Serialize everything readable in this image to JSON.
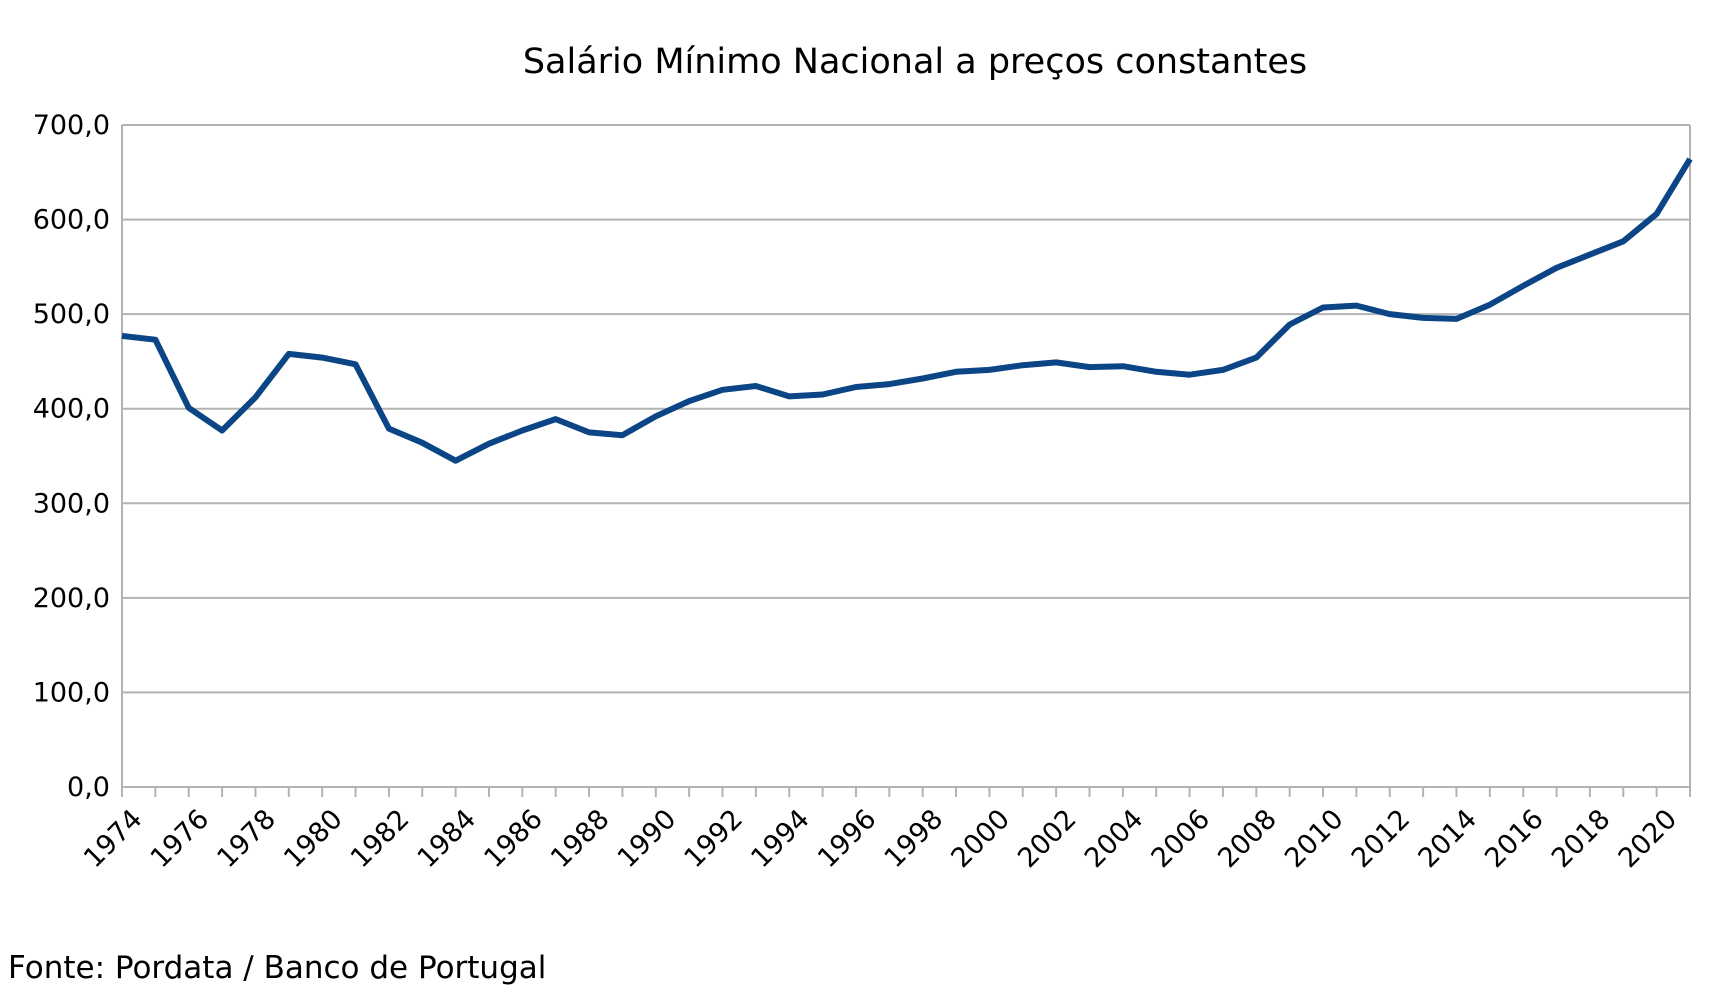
{
  "source_note": "Fonte: Pordata / Banco de Portugal",
  "colors": {
    "line": "#0b4586",
    "grid": "#b3b3b3",
    "axis": "#b3b3b3"
  },
  "chart_data": {
    "type": "line",
    "title": "Salário Mínimo Nacional a preços constantes",
    "xlabel": "",
    "ylabel": "",
    "ylim": [
      0,
      700
    ],
    "y_ticks": [
      "0,0",
      "100,0",
      "200,0",
      "300,0",
      "400,0",
      "500,0",
      "600,0",
      "700,0"
    ],
    "grid": true,
    "legend": "none",
    "x_tick_labels": [
      "1974",
      "1976",
      "1978",
      "1980",
      "1982",
      "1984",
      "1986",
      "1988",
      "1990",
      "1992",
      "1994",
      "1996",
      "1998",
      "2000",
      "2002",
      "2004",
      "2006",
      "2008",
      "2010",
      "2012",
      "2014",
      "2016",
      "2018",
      "2020"
    ],
    "x": [
      1974,
      1975,
      1976,
      1977,
      1978,
      1979,
      1980,
      1981,
      1982,
      1983,
      1984,
      1985,
      1986,
      1987,
      1988,
      1989,
      1990,
      1991,
      1992,
      1993,
      1994,
      1995,
      1996,
      1997,
      1998,
      1999,
      2000,
      2001,
      2002,
      2003,
      2004,
      2005,
      2006,
      2007,
      2008,
      2009,
      2010,
      2011,
      2012,
      2013,
      2014,
      2015,
      2016,
      2017,
      2018,
      2019,
      2020,
      2021
    ],
    "series": [
      {
        "values": [
          477,
          473,
          401,
          377,
          412,
          458,
          454,
          447,
          379,
          364,
          345,
          363,
          377,
          389,
          375,
          372,
          392,
          408,
          420,
          424,
          413,
          415,
          423,
          426,
          432,
          439,
          441,
          446,
          449,
          444,
          445,
          439,
          436,
          441,
          454,
          489,
          507,
          509,
          500,
          496,
          495,
          510,
          530,
          549,
          563,
          577,
          606,
          664
        ]
      }
    ]
  }
}
